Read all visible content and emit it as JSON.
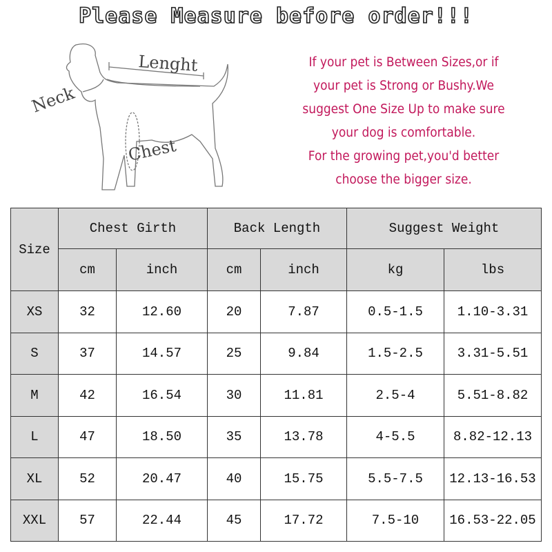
{
  "title": "Please Measure before order!!!",
  "diagram_labels": {
    "length": "Lenght",
    "neck": "Neck",
    "chest": "Chest"
  },
  "advice": [
    "If your pet is Between Sizes,or if",
    "your pet is Strong or Bushy.We",
    "suggest One Size Up to make sure",
    "your dog is comfortable.",
    "For the growing pet,you'd better",
    "choose the bigger size."
  ],
  "accent_color": "#c2185b",
  "table": {
    "size_header": "Size",
    "groups": [
      "Chest Girth",
      "Back Length",
      "Suggest Weight"
    ],
    "units": [
      "cm",
      "inch",
      "cm",
      "inch",
      "kg",
      "lbs"
    ],
    "rows": [
      [
        "XS",
        "32",
        "12.60",
        "20",
        "7.87",
        "0.5-1.5",
        "1.10-3.31"
      ],
      [
        "S",
        "37",
        "14.57",
        "25",
        "9.84",
        "1.5-2.5",
        "3.31-5.51"
      ],
      [
        "M",
        "42",
        "16.54",
        "30",
        "11.81",
        "2.5-4",
        "5.51-8.82"
      ],
      [
        "L",
        "47",
        "18.50",
        "35",
        "13.78",
        "4-5.5",
        "8.82-12.13"
      ],
      [
        "XL",
        "52",
        "20.47",
        "40",
        "15.75",
        "5.5-7.5",
        "12.13-16.53"
      ],
      [
        "XXL",
        "57",
        "22.44",
        "45",
        "17.72",
        "7.5-10",
        "16.53-22.05"
      ]
    ]
  }
}
